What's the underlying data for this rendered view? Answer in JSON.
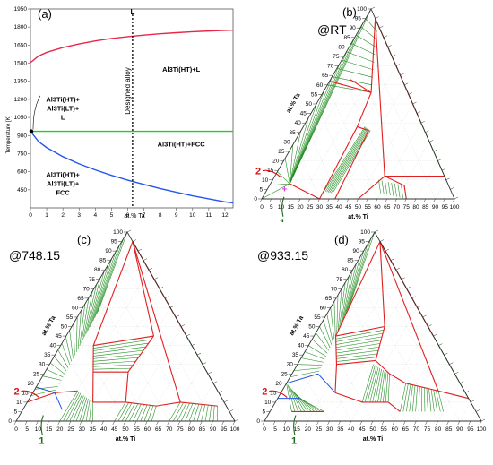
{
  "colors": {
    "upper_line": "#e8284a",
    "middle_line": "#22cc22",
    "lower_line": "#2255ee",
    "tie_line": "#1a8a1a",
    "boundary": "#e02020",
    "marker_red": "#dd1111",
    "marker_green": "#1a6a1a",
    "magenta_point": "#e040e0"
  },
  "chart_data": [
    {
      "panel": "(a)",
      "type": "line",
      "xlabel": "at.% Ta",
      "ylabel": "Temperature [K]",
      "xlim": [
        0,
        12.5
      ],
      "ylim": [
        300,
        1950
      ],
      "x_ticks": [
        "0",
        "1",
        "2",
        "3",
        "4",
        "5",
        "6",
        "7",
        "8",
        "9",
        "10",
        "11",
        "12"
      ],
      "y_ticks": [
        "1950",
        "1800",
        "1650",
        "1500",
        "1350",
        "1200",
        "1050",
        "900",
        "750",
        "600",
        "450"
      ],
      "series": [
        {
          "key": "upper_line",
          "x": [
            0,
            0.5,
            1,
            2,
            3,
            4,
            5,
            6,
            7,
            8,
            9,
            10,
            11,
            12,
            12.5
          ],
          "y": [
            1505,
            1560,
            1590,
            1630,
            1660,
            1685,
            1705,
            1720,
            1733,
            1744,
            1753,
            1761,
            1767,
            1772,
            1774
          ]
        },
        {
          "key": "middle_line",
          "x": [
            0,
            12.5
          ],
          "y": [
            935,
            935
          ]
        },
        {
          "key": "lower_line",
          "x": [
            0,
            0.5,
            1,
            2,
            3,
            4,
            5,
            6,
            7,
            8,
            9,
            10,
            11,
            12,
            12.5
          ],
          "y": [
            935,
            850,
            800,
            725,
            665,
            615,
            570,
            530,
            495,
            460,
            430,
            400,
            375,
            350,
            340
          ]
        }
      ],
      "vline": {
        "x": 6.3,
        "label": "Designed alloy",
        "top_label": "L"
      },
      "regions": [
        {
          "line1": "Al3Ti(HT)+L"
        },
        {
          "line1": "Al3Ti(HT)+",
          "line2": "Al3Ti(LT)+",
          "line3": "L"
        },
        {
          "line1": "Al3Ti(HT)+FCC"
        },
        {
          "line1": "Al3Ti(HT)+",
          "line2": "Al3Ti(LT)+",
          "line3": "FCC"
        }
      ]
    },
    {
      "panel": "(b)",
      "type": "ternary",
      "condition": "@RT",
      "left_axis_label": "at.% Ta",
      "bottom_axis_label": "at.% Ti",
      "ticks": [
        "0",
        "5",
        "10",
        "15",
        "20",
        "25",
        "30",
        "35",
        "40",
        "45",
        "50",
        "55",
        "60",
        "65",
        "70",
        "75",
        "80",
        "85",
        "90",
        "95",
        "100"
      ],
      "markers": [
        "2",
        "1"
      ]
    },
    {
      "panel": "(c)",
      "type": "ternary",
      "condition": "@748.15",
      "left_axis_label": "at.% Ta",
      "bottom_axis_label": "at.% Ti",
      "ticks": [
        "0",
        "5",
        "10",
        "15",
        "20",
        "25",
        "30",
        "35",
        "40",
        "45",
        "50",
        "55",
        "60",
        "65",
        "70",
        "75",
        "80",
        "85",
        "90",
        "95",
        "100"
      ],
      "markers": [
        "2",
        "1"
      ]
    },
    {
      "panel": "(d)",
      "type": "ternary",
      "condition": "@933.15",
      "left_axis_label": "at.% Ta",
      "bottom_axis_label": "at.% Ti",
      "ticks": [
        "0",
        "5",
        "10",
        "15",
        "20",
        "25",
        "30",
        "35",
        "40",
        "45",
        "50",
        "55",
        "60",
        "65",
        "70",
        "75",
        "80",
        "85",
        "90",
        "95",
        "100"
      ],
      "markers": [
        "2",
        "1"
      ]
    }
  ]
}
